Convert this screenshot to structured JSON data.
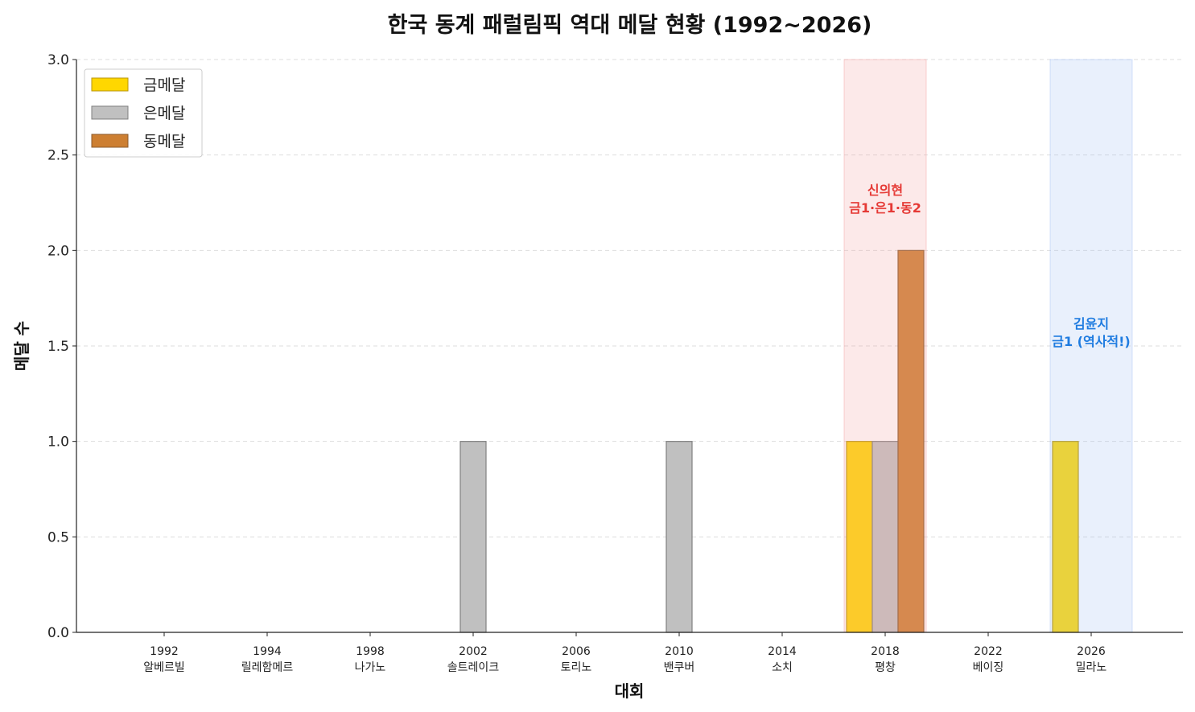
{
  "chart_data": {
    "type": "bar",
    "title": "한국 동계 패럴림픽 역대 메달 현황 (1992~2026)",
    "xlabel": "대회",
    "ylabel": "메달 수",
    "ylim": [
      0,
      3.0
    ],
    "yticks": [
      "0.0",
      "0.5",
      "1.0",
      "1.5",
      "2.0",
      "2.5",
      "3.0"
    ],
    "grid": "y-dashed",
    "legend_position": "top-left",
    "categories": [
      {
        "year": "1992",
        "city": "알베르빌"
      },
      {
        "year": "1994",
        "city": "릴레함메르"
      },
      {
        "year": "1998",
        "city": "나가노"
      },
      {
        "year": "2002",
        "city": "솔트레이크"
      },
      {
        "year": "2006",
        "city": "토리노"
      },
      {
        "year": "2010",
        "city": "밴쿠버"
      },
      {
        "year": "2014",
        "city": "소치"
      },
      {
        "year": "2018",
        "city": "평창"
      },
      {
        "year": "2022",
        "city": "베이징"
      },
      {
        "year": "2026",
        "city": "밀라노"
      }
    ],
    "series": [
      {
        "name": "금메달",
        "color": "#FFD700",
        "edge": "#B8960A",
        "values": [
          0,
          0,
          0,
          0,
          0,
          0,
          0,
          1,
          0,
          1
        ]
      },
      {
        "name": "은메달",
        "color": "#C0C0C0",
        "edge": "#808080",
        "values": [
          0,
          0,
          0,
          1,
          0,
          1,
          0,
          1,
          0,
          0
        ]
      },
      {
        "name": "동메달",
        "color": "#CD7F32",
        "edge": "#8B5A2B",
        "values": [
          0,
          0,
          0,
          0,
          0,
          0,
          0,
          2,
          0,
          0
        ]
      }
    ],
    "highlights": [
      {
        "category": "2018",
        "color": "#F4A6A6",
        "text_color": "#E53935",
        "lines": [
          "신의현",
          "금1·은1·동2"
        ]
      },
      {
        "category": "2026",
        "color": "#A9C4F5",
        "text_color": "#1E7BE0",
        "lines": [
          "김윤지",
          "금1 (역사적!)"
        ]
      }
    ]
  }
}
